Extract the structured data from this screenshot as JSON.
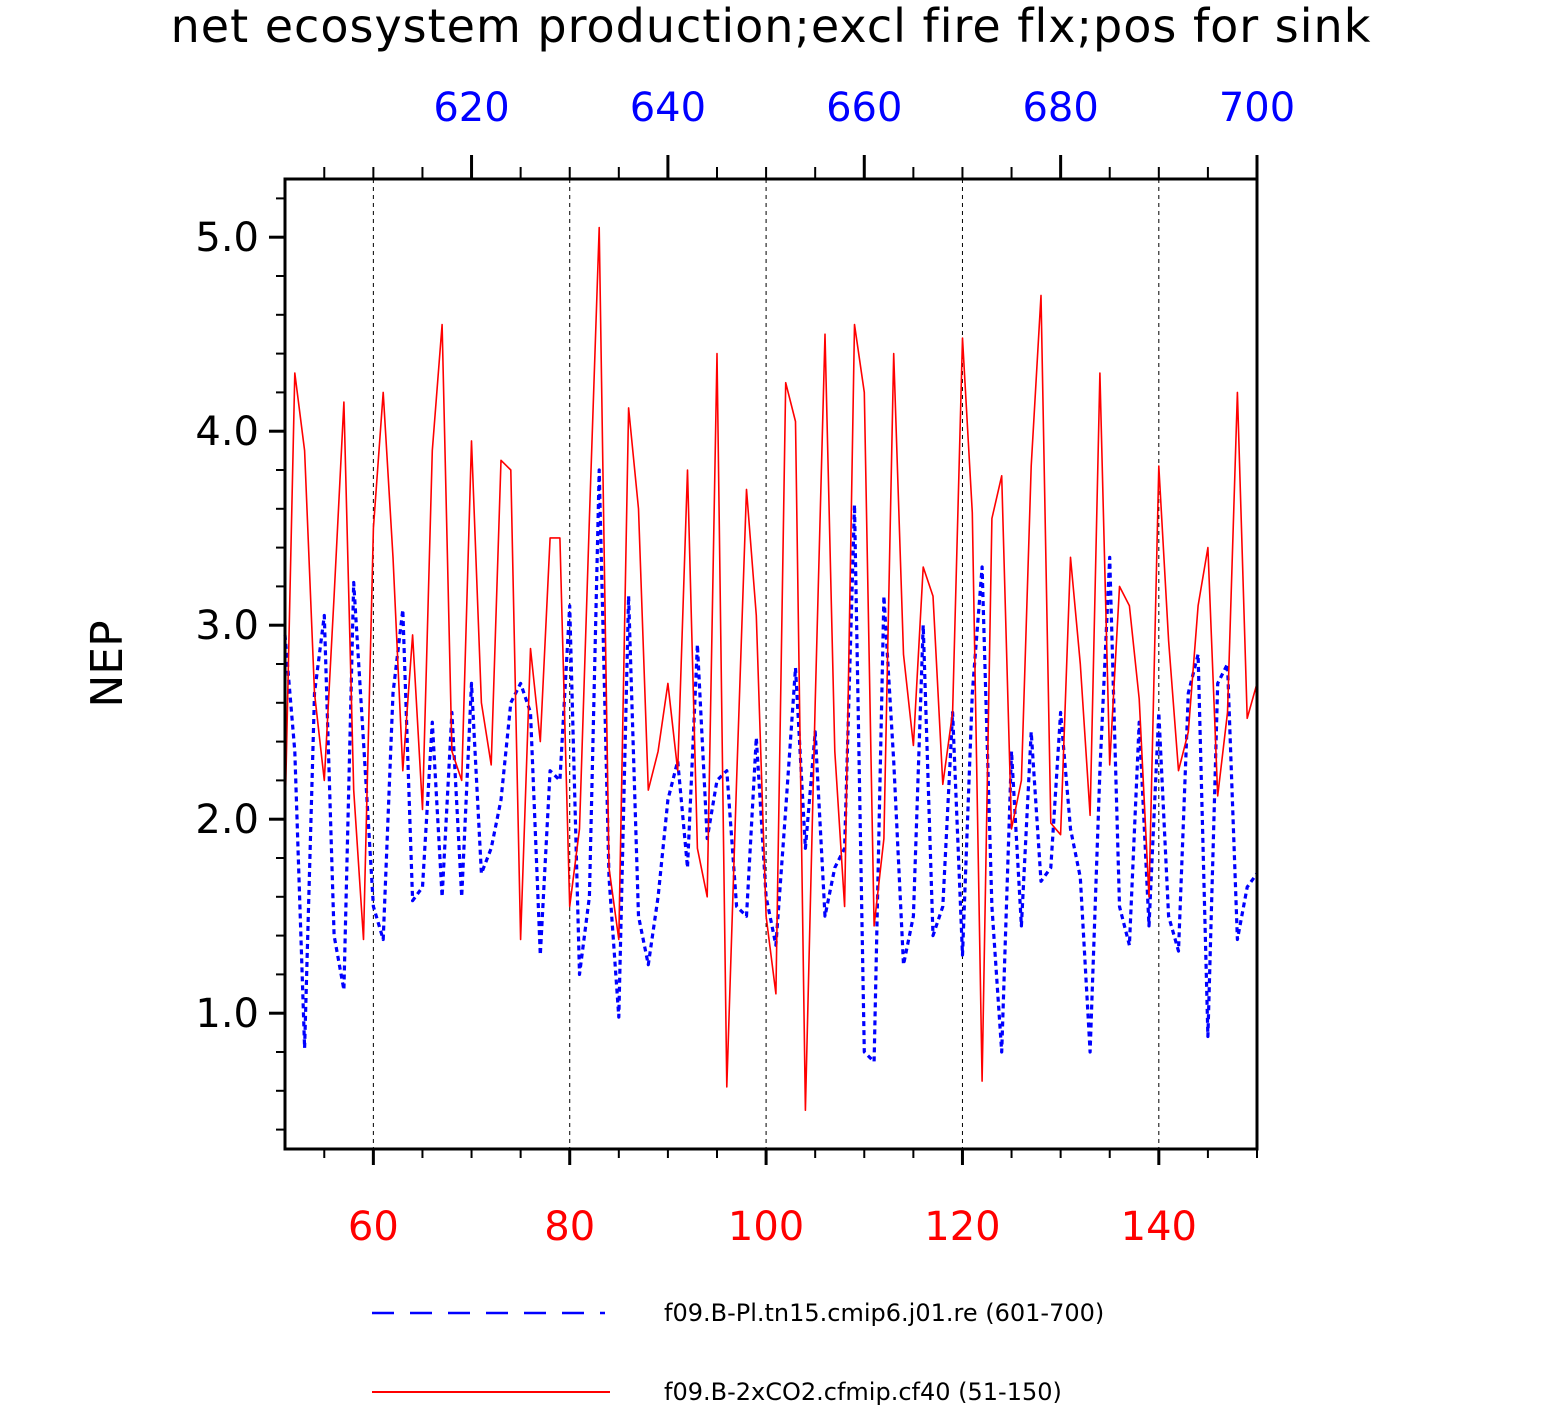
{
  "chart_data": {
    "type": "line",
    "title": "net ecosystem production;excl fire flx;pos for sink",
    "xlabel": "",
    "ylabel": "NEP",
    "xlim": [
      51,
      150
    ],
    "ylim": [
      0.3,
      5.3
    ],
    "top_xlim": [
      601,
      700
    ],
    "y_ticks": [
      1.0,
      2.0,
      3.0,
      4.0,
      5.0
    ],
    "y_tick_labels": [
      "1.0",
      "2.0",
      "3.0",
      "4.0",
      "5.0"
    ],
    "x_ticks_bottom": [
      60,
      80,
      100,
      120,
      140
    ],
    "x_tick_labels_bottom": [
      "60",
      "80",
      "100",
      "120",
      "140"
    ],
    "x_ticks_top": [
      620,
      640,
      660,
      680,
      700
    ],
    "x_tick_labels_top": [
      "620",
      "640",
      "660",
      "680",
      "700"
    ],
    "grid": "vertical-dashed",
    "legend_position": "bottom",
    "series": [
      {
        "name": "f09.B-Pl.tn15.cmip6.j01.re (601-700)",
        "color": "#0000ff",
        "style": "dashed",
        "axis": "top",
        "x": [
          601,
          602,
          603,
          604,
          605,
          606,
          607,
          608,
          609,
          610,
          611,
          612,
          613,
          614,
          615,
          616,
          617,
          618,
          619,
          620,
          621,
          622,
          623,
          624,
          625,
          626,
          627,
          628,
          629,
          630,
          631,
          632,
          633,
          634,
          635,
          636,
          637,
          638,
          639,
          640,
          641,
          642,
          643,
          644,
          645,
          646,
          647,
          648,
          649,
          650,
          651,
          652,
          653,
          654,
          655,
          656,
          657,
          658,
          659,
          660,
          661,
          662,
          663,
          664,
          665,
          666,
          667,
          668,
          669,
          670,
          671,
          672,
          673,
          674,
          675,
          676,
          677,
          678,
          679,
          680,
          681,
          682,
          683,
          684,
          685,
          686,
          687,
          688,
          689,
          690,
          691,
          692,
          693,
          694,
          695,
          696,
          697,
          698,
          699,
          700
        ],
        "y": [
          2.95,
          2.35,
          0.82,
          2.65,
          3.05,
          1.4,
          1.12,
          3.22,
          2.4,
          1.55,
          1.38,
          2.65,
          3.08,
          1.58,
          1.65,
          2.5,
          1.6,
          2.55,
          1.6,
          2.7,
          1.72,
          1.85,
          2.1,
          2.6,
          2.7,
          2.55,
          1.3,
          2.25,
          2.2,
          3.1,
          1.2,
          1.6,
          3.8,
          1.7,
          0.98,
          3.15,
          1.5,
          1.25,
          1.6,
          2.1,
          2.3,
          1.75,
          2.9,
          1.9,
          2.2,
          2.25,
          1.55,
          1.5,
          2.42,
          1.6,
          1.35,
          2.05,
          2.78,
          1.85,
          2.45,
          1.5,
          1.75,
          1.85,
          3.62,
          0.8,
          0.75,
          3.15,
          2.3,
          1.25,
          1.5,
          3.0,
          1.4,
          1.55,
          2.55,
          1.3,
          2.65,
          3.3,
          1.55,
          0.8,
          2.35,
          1.45,
          2.45,
          1.68,
          1.75,
          2.55,
          1.95,
          1.7,
          0.8,
          2.25,
          3.35,
          1.55,
          1.35,
          2.5,
          1.45,
          2.55,
          1.5,
          1.32,
          2.65,
          2.85,
          0.88,
          2.7,
          2.8,
          1.38,
          1.65,
          1.72
        ]
      },
      {
        "name": "f09.B-2xCO2.cfmip.cf40 (51-150)",
        "color": "#ff0000",
        "style": "solid",
        "axis": "bottom",
        "x": [
          51,
          52,
          53,
          54,
          55,
          56,
          57,
          58,
          59,
          60,
          61,
          62,
          63,
          64,
          65,
          66,
          67,
          68,
          69,
          70,
          71,
          72,
          73,
          74,
          75,
          76,
          77,
          78,
          79,
          80,
          81,
          82,
          83,
          84,
          85,
          86,
          87,
          88,
          89,
          90,
          91,
          92,
          93,
          94,
          95,
          96,
          97,
          98,
          99,
          100,
          101,
          102,
          103,
          104,
          105,
          106,
          107,
          108,
          109,
          110,
          111,
          112,
          113,
          114,
          115,
          116,
          117,
          118,
          119,
          120,
          121,
          122,
          123,
          124,
          125,
          126,
          127,
          128,
          129,
          130,
          131,
          132,
          133,
          134,
          135,
          136,
          137,
          138,
          139,
          140,
          141,
          142,
          143,
          144,
          145,
          146,
          147,
          148,
          149,
          150
        ],
        "y": [
          2.0,
          4.3,
          3.9,
          2.65,
          2.2,
          3.15,
          4.15,
          2.15,
          1.38,
          3.5,
          4.2,
          3.35,
          2.25,
          2.95,
          2.05,
          3.9,
          4.55,
          2.35,
          2.2,
          3.95,
          2.6,
          2.28,
          3.85,
          3.8,
          1.38,
          2.88,
          2.4,
          3.45,
          3.45,
          1.55,
          1.95,
          3.55,
          5.05,
          1.75,
          1.38,
          4.12,
          3.6,
          2.15,
          2.35,
          2.7,
          2.25,
          3.8,
          1.85,
          1.6,
          4.4,
          0.62,
          2.2,
          3.7,
          3.05,
          1.5,
          1.1,
          4.25,
          4.05,
          0.5,
          2.6,
          4.5,
          2.35,
          1.55,
          4.55,
          4.2,
          1.45,
          1.9,
          4.4,
          2.85,
          2.38,
          3.3,
          3.15,
          2.18,
          2.55,
          4.48,
          3.58,
          0.65,
          3.55,
          3.77,
          1.95,
          2.2,
          3.82,
          4.7,
          1.98,
          1.92,
          3.35,
          2.8,
          2.02,
          4.3,
          2.28,
          3.2,
          3.1,
          2.62,
          1.6,
          3.82,
          2.92,
          2.25,
          2.45,
          3.1,
          3.4,
          2.12,
          2.55,
          4.2,
          2.52,
          2.7
        ]
      }
    ]
  }
}
